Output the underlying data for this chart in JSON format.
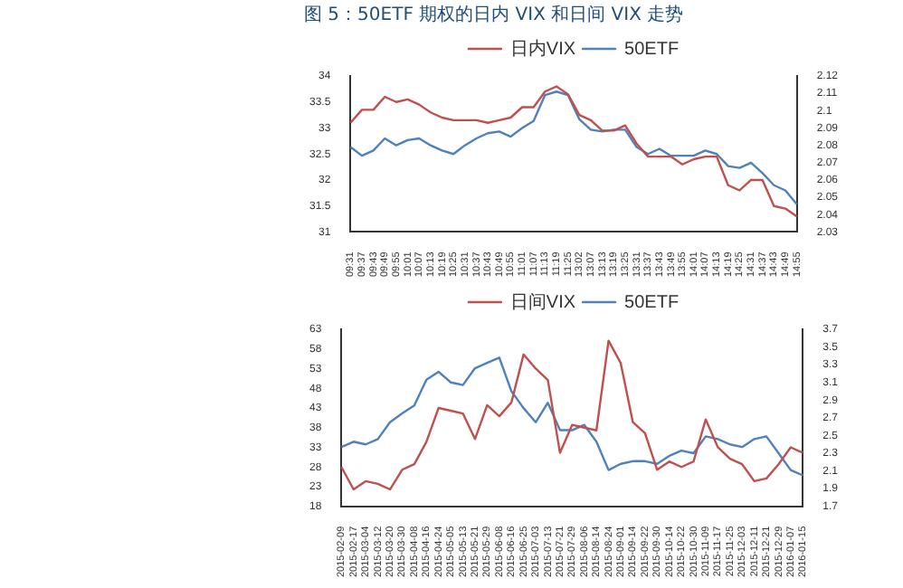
{
  "chart_data": [
    {
      "type": "line",
      "title": "图 5：50ETF 期权的日内 VIX 和日间 VIX 走势",
      "categories": [
        "09:31",
        "09:37",
        "09:43",
        "09:49",
        "09:55",
        "10:01",
        "10:07",
        "10:13",
        "10:19",
        "10:25",
        "10:31",
        "10:37",
        "10:43",
        "10:49",
        "10:55",
        "11:01",
        "11:07",
        "11:13",
        "11:19",
        "11:25",
        "13:02",
        "13:07",
        "13:13",
        "13:19",
        "13:25",
        "13:31",
        "13:37",
        "13:43",
        "13:49",
        "13:55",
        "14:01",
        "14:07",
        "14:13",
        "14:19",
        "14:25",
        "14:31",
        "14:37",
        "14:43",
        "14:49",
        "14:55"
      ],
      "series": [
        {
          "name": "日内VIX",
          "color": "#c0504d",
          "values": [
            33.1,
            33.35,
            33.35,
            33.6,
            33.5,
            33.55,
            33.45,
            33.3,
            33.2,
            33.15,
            33.15,
            33.15,
            33.1,
            33.15,
            33.2,
            33.4,
            33.4,
            33.7,
            33.8,
            33.65,
            33.25,
            33.15,
            32.95,
            32.95,
            33.05,
            32.7,
            32.45,
            32.45,
            32.45,
            32.3,
            32.4,
            32.45,
            32.45,
            31.9,
            31.8,
            32.0,
            32.0,
            31.5,
            31.45,
            31.3
          ]
        },
        {
          "name": "50ETF",
          "color": "#4f81bd",
          "axis": "y2",
          "values": [
            2.079,
            2.074,
            2.077,
            2.084,
            2.08,
            2.083,
            2.084,
            2.08,
            2.077,
            2.075,
            2.08,
            2.084,
            2.087,
            2.088,
            2.085,
            2.09,
            2.094,
            2.109,
            2.111,
            2.109,
            2.095,
            2.089,
            2.088,
            2.089,
            2.089,
            2.079,
            2.075,
            2.078,
            2.074,
            2.074,
            2.074,
            2.077,
            2.075,
            2.068,
            2.067,
            2.07,
            2.064,
            2.057,
            2.054,
            2.046
          ]
        }
      ],
      "ylim": [
        31,
        34
      ],
      "yticks": [
        31,
        31.5,
        32,
        32.5,
        33,
        33.5,
        34
      ],
      "y2lim": [
        2.03,
        2.12
      ],
      "y2ticks": [
        2.03,
        2.04,
        2.05,
        2.06,
        2.07,
        2.08,
        2.09,
        2.1,
        2.11,
        2.12
      ],
      "grid": false,
      "legend": "top",
      "marker": "none",
      "line_style": "solid"
    },
    {
      "type": "line",
      "categories": [
        "2015-02-09",
        "2015-02-17",
        "2015-03-04",
        "2015-03-12",
        "2015-03-20",
        "2015-03-30",
        "2015-04-08",
        "2015-04-16",
        "2015-04-24",
        "2015-05-05",
        "2015-05-13",
        "2015-05-21",
        "2015-05-29",
        "2015-06-08",
        "2015-06-16",
        "2015-06-25",
        "2015-07-03",
        "2015-07-13",
        "2015-07-21",
        "2015-07-29",
        "2015-08-06",
        "2015-08-14",
        "2015-08-24",
        "2015-09-01",
        "2015-09-14",
        "2015-09-22",
        "2015-09-30",
        "2015-10-14",
        "2015-10-22",
        "2015-10-30",
        "2015-11-09",
        "2015-11-17",
        "2015-11-25",
        "2015-12-03",
        "2015-12-11",
        "2015-12-21",
        "2015-12-29",
        "2016-01-07",
        "2016-01-15"
      ],
      "series": [
        {
          "name": "日间VIX",
          "color": "#c0504d",
          "values": [
            28,
            22.3,
            24.4,
            23.7,
            22.3,
            27.3,
            28.7,
            34.4,
            43,
            42.3,
            41.6,
            35.1,
            43.7,
            40.9,
            44.4,
            56.6,
            53,
            50.1,
            31.6,
            38.7,
            38,
            37.3,
            60.1,
            54.4,
            39.4,
            36.6,
            27.3,
            29.4,
            28,
            29.4,
            40.1,
            33,
            30.1,
            28.7,
            24.4,
            25.1,
            28.7,
            33,
            31.6
          ]
        },
        {
          "name": "50ETF",
          "color": "#4f81bd",
          "axis": "y2",
          "values": [
            2.37,
            2.43,
            2.4,
            2.46,
            2.65,
            2.75,
            2.84,
            3.13,
            3.22,
            3.1,
            3.07,
            3.26,
            3.32,
            3.38,
            3.0,
            2.81,
            2.65,
            2.87,
            2.56,
            2.56,
            2.62,
            2.43,
            2.11,
            2.18,
            2.21,
            2.21,
            2.18,
            2.27,
            2.33,
            2.3,
            2.49,
            2.46,
            2.4,
            2.37,
            2.46,
            2.49,
            2.3,
            2.11,
            2.05
          ]
        }
      ],
      "ylim": [
        18,
        63
      ],
      "yticks": [
        18,
        23,
        28,
        33,
        38,
        43,
        48,
        53,
        58,
        63
      ],
      "y2lim": [
        1.7,
        3.7
      ],
      "y2ticks": [
        1.7,
        1.9,
        2.1,
        2.3,
        2.5,
        2.7,
        2.9,
        3.1,
        3.3,
        3.5,
        3.7
      ],
      "grid": false,
      "legend": "top",
      "marker": "none",
      "line_style": "solid"
    }
  ]
}
